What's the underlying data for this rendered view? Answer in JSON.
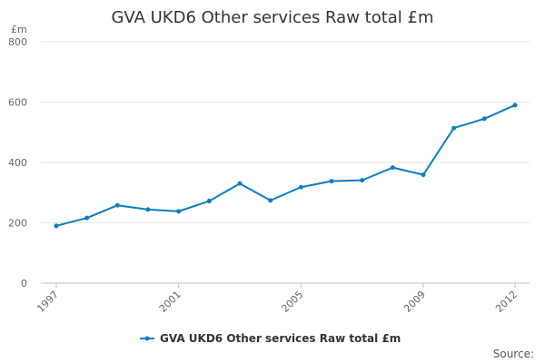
{
  "chart_data": {
    "type": "line",
    "title": "GVA UKD6 Other services Raw total £m",
    "y_unit": "£m",
    "x": [
      1997,
      1998,
      1999,
      2000,
      2001,
      2002,
      2003,
      2004,
      2005,
      2006,
      2007,
      2008,
      2009,
      2010,
      2011,
      2012
    ],
    "x_tick_labels": [
      "1997",
      "2001",
      "2005",
      "2009",
      "2012"
    ],
    "y_tick_labels": [
      "0",
      "200",
      "400",
      "600",
      "800"
    ],
    "ylim": [
      0,
      800
    ],
    "grid": true,
    "legend_position": "bottom",
    "series": [
      {
        "name": "GVA UKD6 Other services Raw total £m",
        "color": "#0b7dc0",
        "values": [
          190,
          216,
          258,
          244,
          238,
          272,
          330,
          274,
          318,
          338,
          341,
          383,
          359,
          514,
          545,
          590
        ]
      }
    ]
  },
  "source_label": "Source:"
}
